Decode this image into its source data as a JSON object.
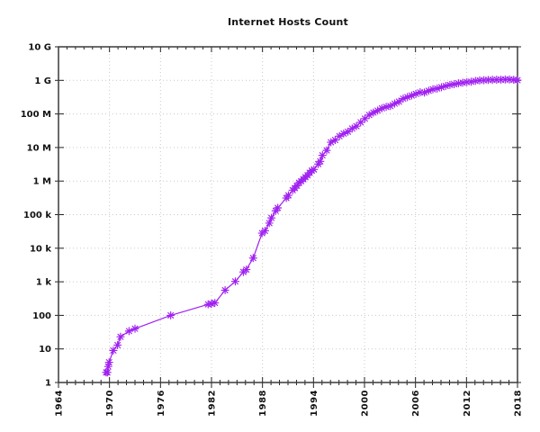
{
  "title": "Internet Hosts Count",
  "colors": {
    "series": "#a020f0",
    "frame": "#3a3a3a",
    "grid": "#c9c9c9",
    "text": "#111111",
    "background": "#ffffff"
  },
  "chart_data": {
    "type": "line",
    "title": "Internet Hosts Count",
    "xlabel": "",
    "ylabel": "",
    "grid": "dotted",
    "legend_position": "none",
    "x_axis": {
      "min": 1964,
      "max": 2018,
      "major_tick_step": 6,
      "minor_tick_step": 1,
      "tick_labels": [
        "1964",
        "1970",
        "1976",
        "1982",
        "1988",
        "1994",
        "2000",
        "2006",
        "2012",
        "2018"
      ]
    },
    "y_axis": {
      "scale": "log10",
      "min": 1,
      "max": 10000000000,
      "tick_labels": [
        "1",
        "10",
        "100",
        "1 k",
        "10 k",
        "100 k",
        "1 M",
        "10 M",
        "100 M",
        "1 G",
        "10 G"
      ]
    },
    "series": [
      {
        "name": "Internet hosts count",
        "color": "#a020f0",
        "marker": "asterisk",
        "line": true,
        "points": [
          [
            1969.6,
            2
          ],
          [
            1969.75,
            2
          ],
          [
            1969.85,
            3
          ],
          [
            1969.95,
            4
          ],
          [
            1970.45,
            9
          ],
          [
            1970.95,
            13
          ],
          [
            1971.3,
            23
          ],
          [
            1972.3,
            34
          ],
          [
            1973.0,
            40
          ],
          [
            1977.2,
            100
          ],
          [
            1981.6,
            213
          ],
          [
            1982.0,
            222
          ],
          [
            1982.4,
            235
          ],
          [
            1983.6,
            562
          ],
          [
            1984.8,
            1024
          ],
          [
            1985.75,
            1961
          ],
          [
            1986.1,
            2308
          ],
          [
            1986.9,
            5089
          ],
          [
            1987.95,
            28174
          ],
          [
            1988.3,
            33000
          ],
          [
            1988.8,
            56000
          ],
          [
            1989.05,
            80000
          ],
          [
            1989.55,
            130000
          ],
          [
            1989.8,
            159000
          ],
          [
            1990.8,
            313000
          ],
          [
            1991.05,
            376000
          ],
          [
            1991.55,
            535000
          ],
          [
            1991.8,
            617000
          ],
          [
            1992.05,
            727000
          ],
          [
            1992.3,
            890000
          ],
          [
            1992.55,
            992000
          ],
          [
            1992.8,
            1136000
          ],
          [
            1993.05,
            1313000
          ],
          [
            1993.3,
            1486000
          ],
          [
            1993.55,
            1776000
          ],
          [
            1993.8,
            2056000
          ],
          [
            1994.05,
            2217000
          ],
          [
            1994.55,
            3212000
          ],
          [
            1994.8,
            3864000
          ],
          [
            1995.05,
            5846000
          ],
          [
            1995.55,
            8200000
          ],
          [
            1996.05,
            14352000
          ],
          [
            1996.55,
            16729000
          ],
          [
            1997.05,
            21819000
          ],
          [
            1997.55,
            26053000
          ],
          [
            1998.05,
            29670000
          ],
          [
            1998.55,
            36739000
          ],
          [
            1999.05,
            43230000
          ],
          [
            1999.55,
            56218000
          ],
          [
            2000.05,
            72398092
          ],
          [
            2000.55,
            93047785
          ],
          [
            2001.05,
            109574429
          ],
          [
            2001.55,
            125888197
          ],
          [
            2002.05,
            147344723
          ],
          [
            2002.55,
            162128493
          ],
          [
            2003.05,
            171638297
          ],
          [
            2003.55,
            203000000
          ],
          [
            2004.05,
            233101481
          ],
          [
            2004.55,
            285139107
          ],
          [
            2005.05,
            317646084
          ],
          [
            2005.55,
            353284187
          ],
          [
            2006.05,
            394991609
          ],
          [
            2006.55,
            439286364
          ],
          [
            2007.05,
            433193199
          ],
          [
            2007.55,
            489774269
          ],
          [
            2008.05,
            541677360
          ],
          [
            2008.55,
            570937778
          ],
          [
            2009.05,
            625226456
          ],
          [
            2009.55,
            681064561
          ],
          [
            2010.05,
            732740444
          ],
          [
            2010.55,
            768913036
          ],
          [
            2011.05,
            818374269
          ],
          [
            2011.55,
            849869781
          ],
          [
            2012.05,
            888239420
          ],
          [
            2012.55,
            908585739
          ],
          [
            2013.05,
            963518598
          ],
          [
            2013.55,
            996230757
          ],
          [
            2014.05,
            1010251829
          ],
          [
            2014.55,
            1028544414
          ],
          [
            2015.05,
            1033836029
          ],
          [
            2015.55,
            1045534808
          ],
          [
            2016.05,
            1048766623
          ],
          [
            2016.55,
            1062660523
          ],
          [
            2017.05,
            1062660523
          ],
          [
            2017.55,
            1038700000
          ],
          [
            2018.0,
            1012695272
          ]
        ]
      }
    ]
  }
}
